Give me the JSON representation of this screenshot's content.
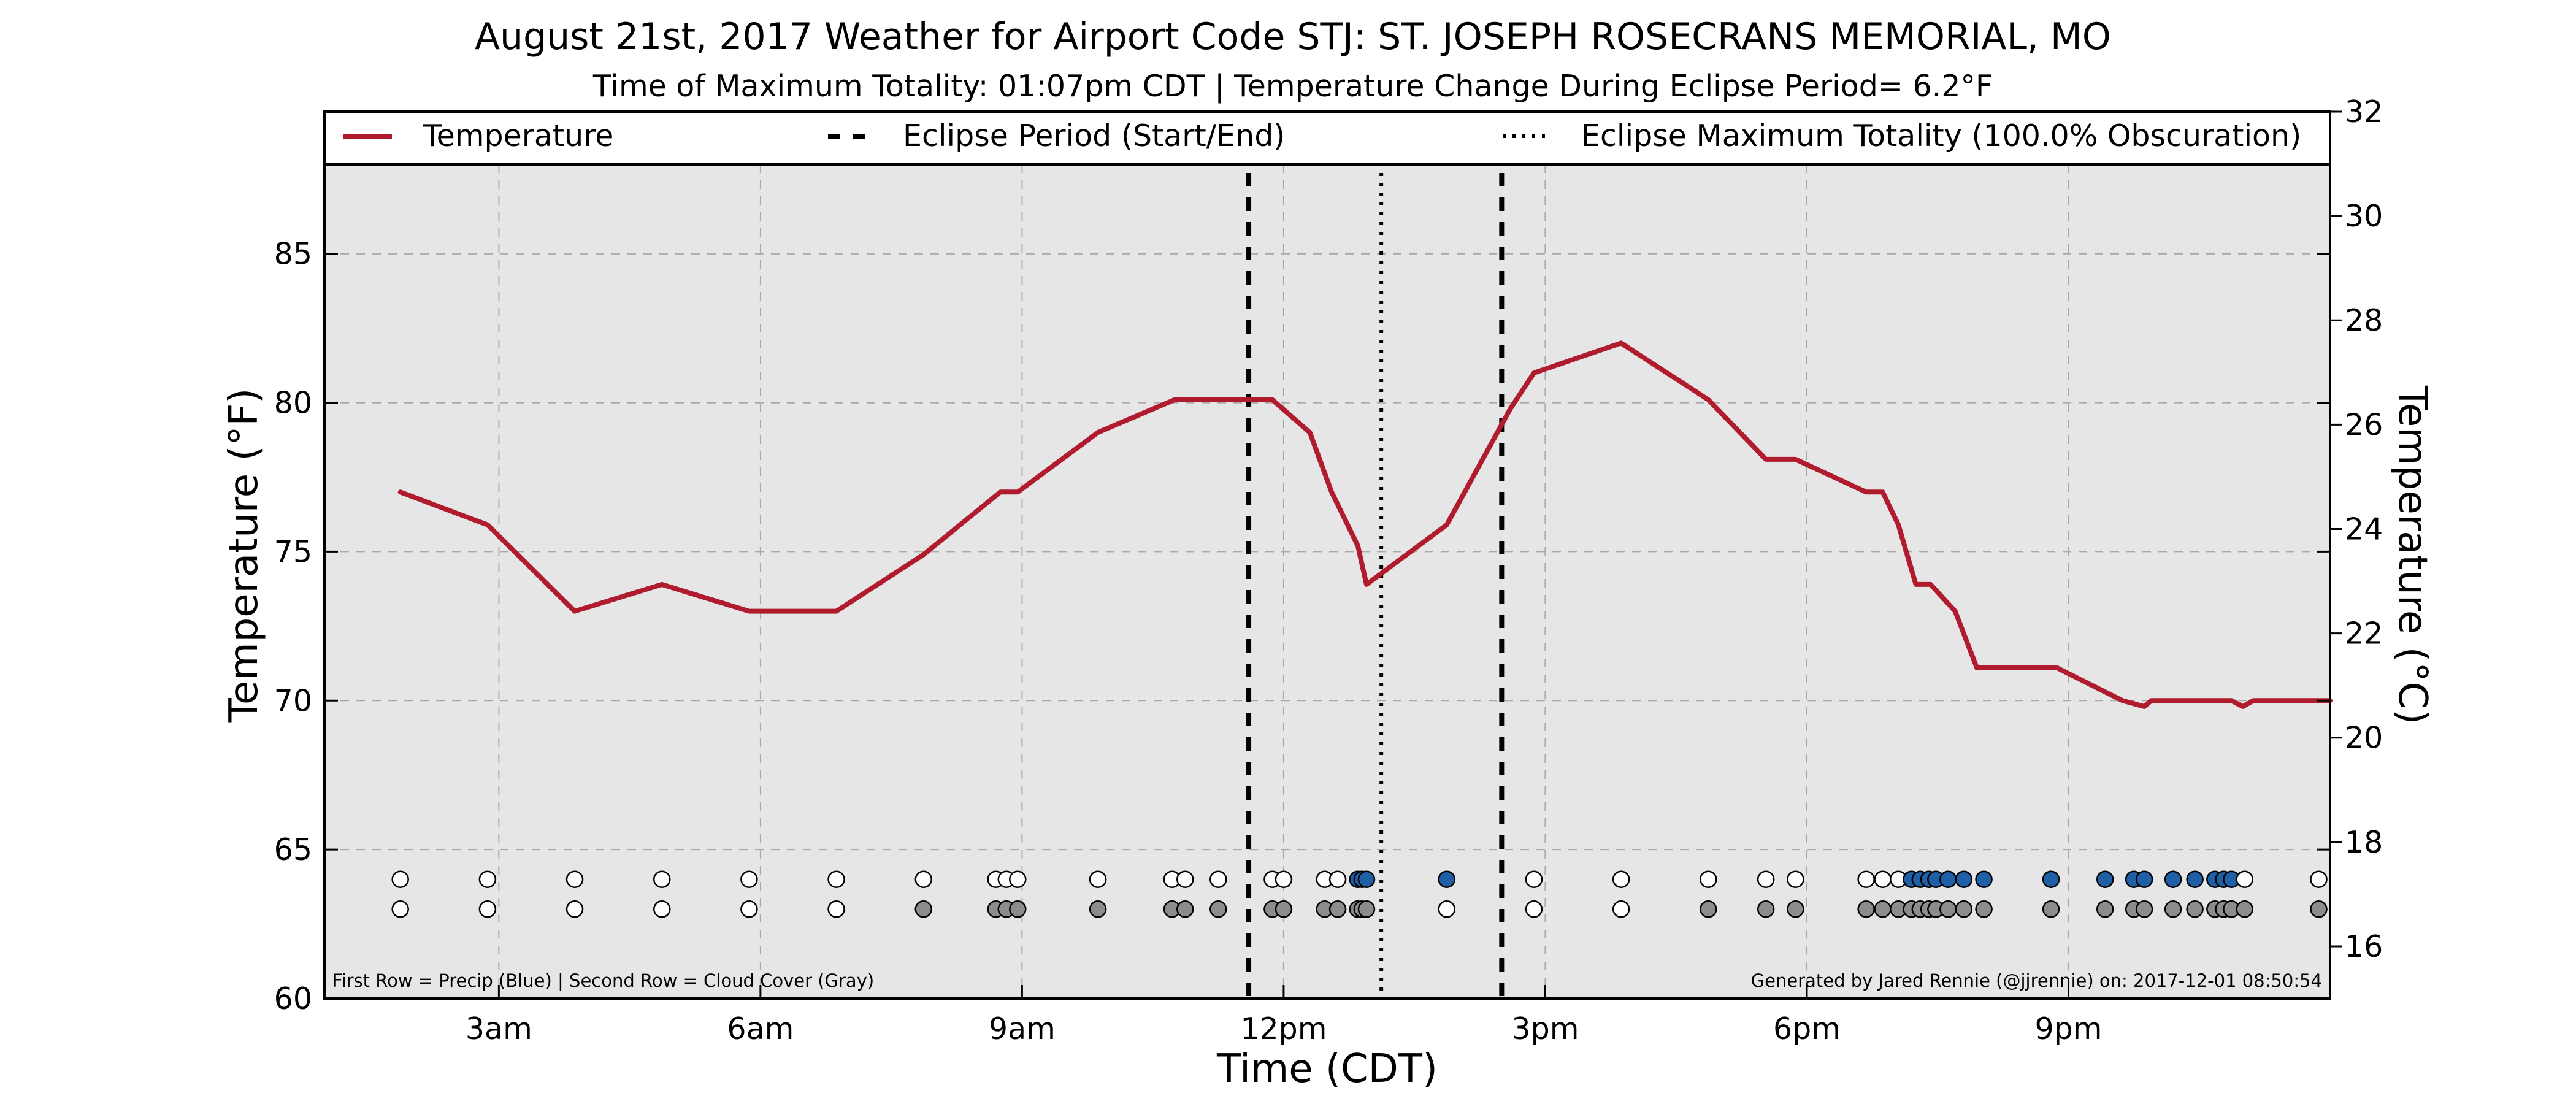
{
  "title": "August 21st, 2017 Weather for Airport Code STJ: ST. JOSEPH ROSECRANS MEMORIAL, MO",
  "subtitle": "Time of Maximum Totality: 01:07pm CDT | Temperature Change During Eclipse Period= 6.2°F",
  "footer_left": "First Row = Precip (Blue) | Second Row = Cloud Cover (Gray)",
  "footer_right": "Generated by Jared Rennie (@jjrennie) on: 2017-12-01 08:50:54",
  "colors": {
    "temperature_line": "#b01c2e",
    "plot_background": "#e6e6e6",
    "precip_marker": "#1f5fa6",
    "cloud_marker": "#8c8c8c",
    "empty_marker": "#ffffff"
  },
  "chart_data": {
    "type": "line",
    "xlabel": "Time (CDT)",
    "ylabel": "Temperature (°F)",
    "ylabel_right": "Temperature (°C)",
    "x_unit": "hours since midnight CDT",
    "xlim": [
      1.0,
      24.0
    ],
    "ylim": [
      60,
      88
    ],
    "ylim_right": [
      15,
      32
    ],
    "x_ticks": [
      3,
      6,
      9,
      12,
      15,
      18,
      21
    ],
    "x_tick_labels": [
      "3am",
      "6am",
      "9am",
      "12pm",
      "3pm",
      "6pm",
      "9pm"
    ],
    "y_ticks": [
      60,
      65,
      70,
      75,
      80,
      85
    ],
    "y_tick_labels": [
      "60",
      "65",
      "70",
      "75",
      "80",
      "85"
    ],
    "y_ticks_right": [
      16,
      18,
      20,
      22,
      24,
      26,
      28,
      30,
      32
    ],
    "y_tick_labels_right": [
      "16",
      "18",
      "20",
      "22",
      "24",
      "26",
      "28",
      "30",
      "32"
    ],
    "grid": true,
    "legend_placement": "top, across full width",
    "legend": [
      {
        "label": "Temperature",
        "style": "solid"
      },
      {
        "label": "Eclipse Period (Start/End)",
        "style": "dashed"
      },
      {
        "label": "Eclipse Maximum Totality (100.0% Obscuration)",
        "style": "dotted"
      }
    ],
    "series": [
      {
        "name": "Temperature",
        "x": [
          1.87,
          2.87,
          3.87,
          4.87,
          5.87,
          6.87,
          7.87,
          8.75,
          8.95,
          9.87,
          10.75,
          10.95,
          11.37,
          11.6,
          11.87,
          12.3,
          12.55,
          12.85,
          12.95,
          13.87,
          14.6,
          14.87,
          15.87,
          16.87,
          17.53,
          17.87,
          18.68,
          18.87,
          19.05,
          19.25,
          19.42,
          19.7,
          19.95,
          20.87,
          21.62,
          21.87,
          21.95,
          22.18,
          22.87,
          23.0,
          23.12,
          24.0
        ],
        "y": [
          77.0,
          75.9,
          73.0,
          73.9,
          73.0,
          73.0,
          74.9,
          77.0,
          77.0,
          79.0,
          80.1,
          80.1,
          80.1,
          80.1,
          80.1,
          79.0,
          77.0,
          75.2,
          73.9,
          75.9,
          79.8,
          81.0,
          82.0,
          80.1,
          78.1,
          78.1,
          77.0,
          77.0,
          75.9,
          73.9,
          73.9,
          73.0,
          71.1,
          71.1,
          70.0,
          69.8,
          70.0,
          70.0,
          70.0,
          69.8,
          70.0,
          70.0
        ]
      }
    ],
    "eclipse": {
      "start": 11.6,
      "end": 14.5,
      "max_totality": 13.12,
      "max_totality_label": "01:07pm",
      "temperature_change_f": 6.2,
      "obscuration_percent": 100.0
    },
    "precip_row": [
      {
        "x": 1.87,
        "c": "w"
      },
      {
        "x": 2.87,
        "c": "w"
      },
      {
        "x": 3.87,
        "c": "w"
      },
      {
        "x": 4.87,
        "c": "w"
      },
      {
        "x": 5.87,
        "c": "w"
      },
      {
        "x": 6.87,
        "c": "w"
      },
      {
        "x": 7.87,
        "c": "w"
      },
      {
        "x": 8.7,
        "c": "w"
      },
      {
        "x": 8.82,
        "c": "w"
      },
      {
        "x": 8.95,
        "c": "w"
      },
      {
        "x": 9.87,
        "c": "w"
      },
      {
        "x": 10.72,
        "c": "w"
      },
      {
        "x": 10.87,
        "c": "w"
      },
      {
        "x": 11.25,
        "c": "w"
      },
      {
        "x": 11.87,
        "c": "w"
      },
      {
        "x": 12.0,
        "c": "w"
      },
      {
        "x": 12.47,
        "c": "w"
      },
      {
        "x": 12.62,
        "c": "w"
      },
      {
        "x": 12.85,
        "c": "b"
      },
      {
        "x": 12.9,
        "c": "b"
      },
      {
        "x": 12.95,
        "c": "b"
      },
      {
        "x": 13.87,
        "c": "b"
      },
      {
        "x": 14.87,
        "c": "w"
      },
      {
        "x": 15.87,
        "c": "w"
      },
      {
        "x": 16.87,
        "c": "w"
      },
      {
        "x": 17.53,
        "c": "w"
      },
      {
        "x": 17.87,
        "c": "w"
      },
      {
        "x": 18.68,
        "c": "w"
      },
      {
        "x": 18.87,
        "c": "w"
      },
      {
        "x": 19.05,
        "c": "w"
      },
      {
        "x": 19.2,
        "c": "b"
      },
      {
        "x": 19.3,
        "c": "b"
      },
      {
        "x": 19.4,
        "c": "b"
      },
      {
        "x": 19.48,
        "c": "b"
      },
      {
        "x": 19.62,
        "c": "b"
      },
      {
        "x": 19.8,
        "c": "b"
      },
      {
        "x": 20.03,
        "c": "b"
      },
      {
        "x": 20.8,
        "c": "b"
      },
      {
        "x": 21.42,
        "c": "b"
      },
      {
        "x": 21.75,
        "c": "b"
      },
      {
        "x": 21.87,
        "c": "b"
      },
      {
        "x": 22.2,
        "c": "b"
      },
      {
        "x": 22.45,
        "c": "b"
      },
      {
        "x": 22.68,
        "c": "b"
      },
      {
        "x": 22.78,
        "c": "b"
      },
      {
        "x": 22.87,
        "c": "b"
      },
      {
        "x": 23.02,
        "c": "w"
      },
      {
        "x": 23.87,
        "c": "w"
      }
    ],
    "cloud_row": [
      {
        "x": 1.87,
        "c": "w"
      },
      {
        "x": 2.87,
        "c": "w"
      },
      {
        "x": 3.87,
        "c": "w"
      },
      {
        "x": 4.87,
        "c": "w"
      },
      {
        "x": 5.87,
        "c": "w"
      },
      {
        "x": 6.87,
        "c": "w"
      },
      {
        "x": 7.87,
        "c": "g"
      },
      {
        "x": 8.7,
        "c": "g"
      },
      {
        "x": 8.82,
        "c": "g"
      },
      {
        "x": 8.95,
        "c": "g"
      },
      {
        "x": 9.87,
        "c": "g"
      },
      {
        "x": 10.72,
        "c": "g"
      },
      {
        "x": 10.87,
        "c": "g"
      },
      {
        "x": 11.25,
        "c": "g"
      },
      {
        "x": 11.87,
        "c": "g"
      },
      {
        "x": 12.0,
        "c": "g"
      },
      {
        "x": 12.47,
        "c": "g"
      },
      {
        "x": 12.62,
        "c": "g"
      },
      {
        "x": 12.85,
        "c": "g"
      },
      {
        "x": 12.9,
        "c": "g"
      },
      {
        "x": 12.95,
        "c": "g"
      },
      {
        "x": 13.87,
        "c": "w"
      },
      {
        "x": 14.87,
        "c": "w"
      },
      {
        "x": 15.87,
        "c": "w"
      },
      {
        "x": 16.87,
        "c": "g"
      },
      {
        "x": 17.53,
        "c": "g"
      },
      {
        "x": 17.87,
        "c": "g"
      },
      {
        "x": 18.68,
        "c": "g"
      },
      {
        "x": 18.87,
        "c": "g"
      },
      {
        "x": 19.05,
        "c": "g"
      },
      {
        "x": 19.2,
        "c": "g"
      },
      {
        "x": 19.3,
        "c": "g"
      },
      {
        "x": 19.4,
        "c": "g"
      },
      {
        "x": 19.48,
        "c": "g"
      },
      {
        "x": 19.62,
        "c": "g"
      },
      {
        "x": 19.8,
        "c": "g"
      },
      {
        "x": 20.03,
        "c": "g"
      },
      {
        "x": 20.8,
        "c": "g"
      },
      {
        "x": 21.42,
        "c": "g"
      },
      {
        "x": 21.75,
        "c": "g"
      },
      {
        "x": 21.87,
        "c": "g"
      },
      {
        "x": 22.2,
        "c": "g"
      },
      {
        "x": 22.45,
        "c": "g"
      },
      {
        "x": 22.68,
        "c": "g"
      },
      {
        "x": 22.78,
        "c": "g"
      },
      {
        "x": 22.87,
        "c": "g"
      },
      {
        "x": 23.02,
        "c": "g"
      },
      {
        "x": 23.87,
        "c": "g"
      }
    ],
    "row_levels": {
      "precip": 64,
      "cloud": 63
    }
  }
}
